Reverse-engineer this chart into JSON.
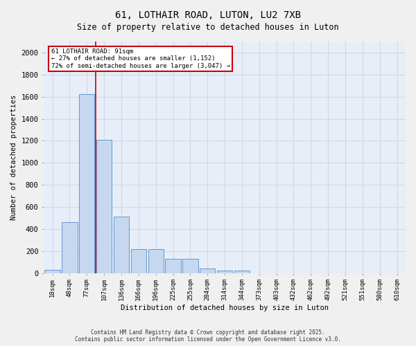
{
  "title1": "61, LOTHAIR ROAD, LUTON, LU2 7XB",
  "title2": "Size of property relative to detached houses in Luton",
  "xlabel": "Distribution of detached houses by size in Luton",
  "ylabel": "Number of detached properties",
  "bin_labels": [
    "18sqm",
    "48sqm",
    "77sqm",
    "107sqm",
    "136sqm",
    "166sqm",
    "196sqm",
    "225sqm",
    "255sqm",
    "284sqm",
    "314sqm",
    "344sqm",
    "373sqm",
    "403sqm",
    "432sqm",
    "462sqm",
    "492sqm",
    "521sqm",
    "551sqm",
    "580sqm",
    "610sqm"
  ],
  "bar_values": [
    30,
    460,
    1620,
    1210,
    510,
    215,
    215,
    130,
    130,
    40,
    25,
    20,
    0,
    0,
    0,
    0,
    0,
    0,
    0,
    0,
    0
  ],
  "bar_color": "#c5d8f0",
  "bar_edge_color": "#6699cc",
  "annotation_line1": "61 LOTHAIR ROAD: 91sqm",
  "annotation_line2": "← 27% of detached houses are smaller (1,152)",
  "annotation_line3": "72% of semi-detached houses are larger (3,047) →",
  "annotation_box_color": "#ffffff",
  "annotation_border_color": "#cc0000",
  "red_line_color": "#cc0000",
  "ylim": [
    0,
    2100
  ],
  "yticks": [
    0,
    200,
    400,
    600,
    800,
    1000,
    1200,
    1400,
    1600,
    1800,
    2000
  ],
  "grid_color": "#d0d8e8",
  "bg_color": "#e8eef8",
  "fig_bg_color": "#f0f0f0",
  "footer1": "Contains HM Land Registry data © Crown copyright and database right 2025.",
  "footer2": "Contains public sector information licensed under the Open Government Licence v3.0."
}
